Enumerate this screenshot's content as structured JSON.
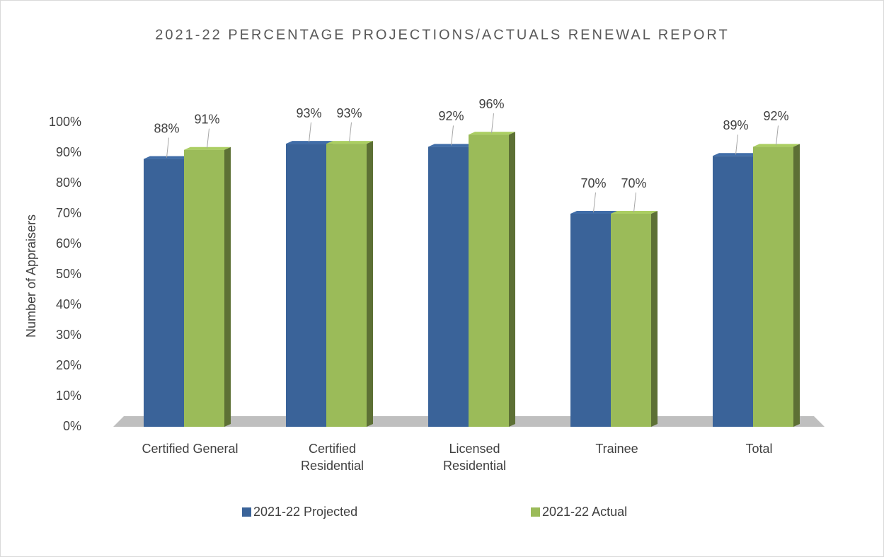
{
  "chart_data": {
    "type": "bar3d",
    "title": "2021-22 PERCENTAGE PROJECTIONS/ACTUALS RENEWAL REPORT",
    "y_label": "Number of Appraisers",
    "categories": [
      "Certified General",
      "Certified Residential",
      "Licensed Residential",
      "Trainee",
      "Total"
    ],
    "series": [
      {
        "name": "2021-22 Projected",
        "color": "#3a6399",
        "values": [
          88,
          93,
          92,
          70,
          89
        ],
        "value_labels": [
          "88%",
          "93%",
          "92%",
          "70%",
          "89%"
        ]
      },
      {
        "name": "2021-22 Actual",
        "color": "#9bbb59",
        "values": [
          91,
          93,
          96,
          70,
          92
        ],
        "value_labels": [
          "91%",
          "93%",
          "96%",
          "70%",
          "92%"
        ]
      }
    ],
    "ylim": [
      0,
      100
    ],
    "yticks": [
      {
        "value": 0,
        "label": "0%"
      },
      {
        "value": 10,
        "label": "10%"
      },
      {
        "value": 20,
        "label": "20%"
      },
      {
        "value": 30,
        "label": "30%"
      },
      {
        "value": 40,
        "label": "40%"
      },
      {
        "value": 50,
        "label": "50%"
      },
      {
        "value": 60,
        "label": "60%"
      },
      {
        "value": 70,
        "label": "70%"
      },
      {
        "value": 80,
        "label": "80%"
      },
      {
        "value": 90,
        "label": "90%"
      },
      {
        "value": 100,
        "label": "100%"
      }
    ],
    "legend": "bottom"
  }
}
